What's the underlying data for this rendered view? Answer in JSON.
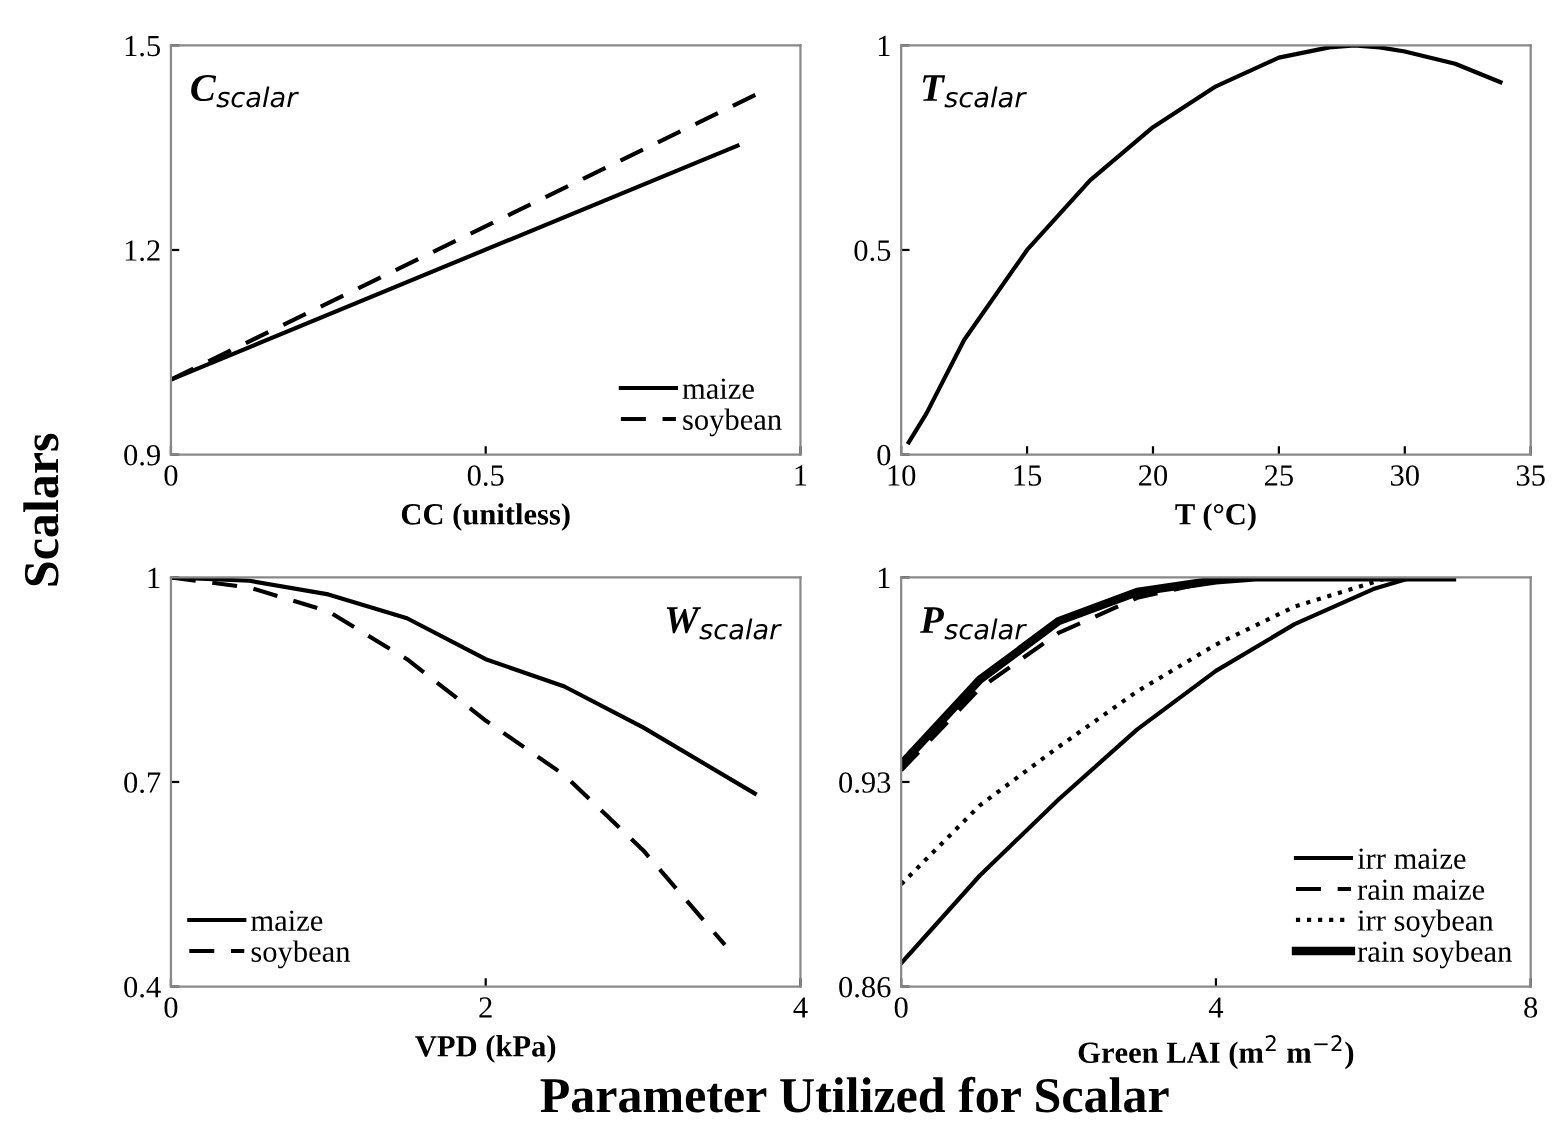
{
  "chart_data": [
    {
      "type": "line",
      "xlabel": "CC (unitless)",
      "xlim": [
        0,
        1
      ],
      "xticks": [
        0,
        0.5,
        1
      ],
      "ylim": [
        0.9,
        1.5
      ],
      "yticks": [
        0.9,
        1.2,
        1.5
      ],
      "legend": "bottom right",
      "annotations": [
        "C$_{scalar}$",
        "Scalars"
      ],
      "series": [
        {
          "name": "maize",
          "color": "#000000",
          "line_style": "solid",
          "x": [
            0,
            0.9
          ],
          "values": [
            1.01,
            1.353
          ]
        },
        {
          "name": "soybean",
          "color": "#000000",
          "line_style": "dashed",
          "x": [
            0,
            0.93
          ],
          "values": [
            1.01,
            1.428
          ]
        }
      ]
    },
    {
      "type": "line",
      "xlabel": "T (°C)",
      "xlim": [
        10,
        35
      ],
      "xticks": [
        10,
        15,
        20,
        25,
        30,
        35
      ],
      "ylim": [
        0,
        1
      ],
      "yticks": [
        0,
        0.5,
        1
      ],
      "annotations": [
        "T$_{scalar}$"
      ],
      "series": [
        {
          "color": "#000000",
          "line_style": "solid",
          "x": [
            10.3,
            11,
            12.5,
            15,
            17.5,
            20,
            22.5,
            25,
            27,
            28,
            29,
            30,
            32,
            33.8
          ],
          "values": [
            0.03,
            0.1,
            0.28,
            0.5,
            0.67,
            0.8,
            0.9,
            0.97,
            0.995,
            1.0,
            0.995,
            0.985,
            0.955,
            0.91
          ]
        }
      ]
    },
    {
      "type": "line",
      "xlabel": "VPD (kPa)",
      "xlim": [
        0,
        4
      ],
      "xticks": [
        0,
        2,
        4
      ],
      "ylim": [
        0.4,
        1
      ],
      "yticks": [
        0.4,
        0.7,
        1
      ],
      "legend": "bottom left",
      "annotations": [
        "W$_{scalar}$"
      ],
      "series": [
        {
          "name": "maize",
          "color": "#000000",
          "line_style": "solid",
          "x": [
            0,
            0.5,
            1,
            1.5,
            2,
            2.5,
            3,
            3.71
          ],
          "values": [
            1.0,
            0.995,
            0.975,
            0.94,
            0.88,
            0.84,
            0.78,
            0.683
          ]
        },
        {
          "name": "soybean",
          "color": "#000000",
          "line_style": "dashed",
          "x": [
            0,
            0.5,
            1,
            1.5,
            2,
            2.5,
            3,
            3.52
          ],
          "values": [
            1.0,
            0.985,
            0.95,
            0.88,
            0.79,
            0.71,
            0.6,
            0.461
          ]
        }
      ]
    },
    {
      "type": "line",
      "xlabel": "Green LAI (m$^{2}$ m$^{−2}$)",
      "xlim": [
        0,
        8
      ],
      "xticks": [
        0,
        4,
        8
      ],
      "ylim": [
        0.86,
        1
      ],
      "yticks": [
        0.86,
        0.93,
        1
      ],
      "legend": "bottom right",
      "annotations": [
        "P$_{scalar}$",
        "Parameter Utilized for Scalar"
      ],
      "series": [
        {
          "name": "irr maize",
          "color": "#000000",
          "line_style": "solid",
          "x": [
            0,
            1,
            2,
            3,
            4,
            5,
            6,
            6.5,
            7
          ],
          "values": [
            0.868,
            0.898,
            0.924,
            0.948,
            0.968,
            0.984,
            0.996,
            1.0,
            1.0
          ]
        },
        {
          "name": "rain maize",
          "color": "#000000",
          "line_style": "dashed",
          "x": [
            0,
            1,
            2,
            3,
            4,
            4.7,
            7
          ],
          "values": [
            0.934,
            0.962,
            0.981,
            0.993,
            0.999,
            1.0,
            1.0
          ]
        },
        {
          "name": "irr soybean",
          "color": "#000000",
          "line_style": "dotted",
          "x": [
            0,
            1,
            2,
            3,
            4,
            5,
            6.2,
            7
          ],
          "values": [
            0.895,
            0.922,
            0.942,
            0.961,
            0.977,
            0.99,
            1.0,
            1.0
          ]
        },
        {
          "name": "rain soybean",
          "color": "#000000",
          "line_style": "solid",
          "x": [
            0,
            1,
            2,
            3,
            4,
            4.5,
            7
          ],
          "values": [
            0.936,
            0.965,
            0.985,
            0.995,
            0.999,
            1.0,
            1.0
          ]
        }
      ]
    }
  ]
}
